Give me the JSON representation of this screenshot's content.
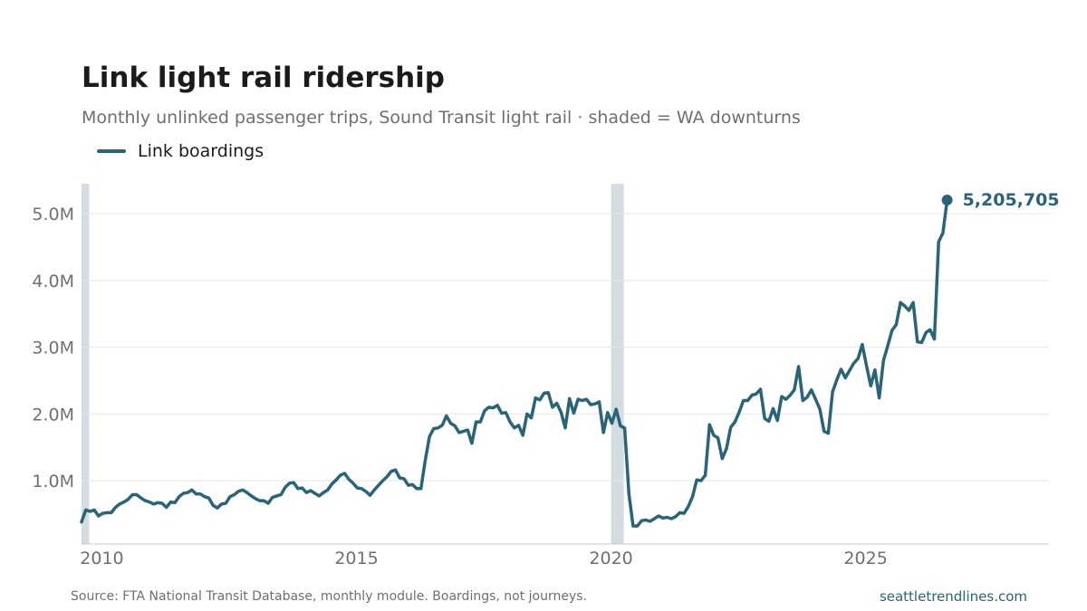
{
  "title": "Link light rail ridership",
  "subtitle": "Monthly unlinked passenger trips, Sound Transit light rail · shaded = WA downturns",
  "legend": {
    "label": "Link boardings"
  },
  "colors": {
    "line": "#2a6577",
    "shade": "#d3dde1",
    "grid": "#e6e6e6",
    "axis": "#c8c8c8",
    "tick": "#6f6f6f"
  },
  "footer": {
    "source": "Source: FTA National Transit Database, monthly module. Boardings, not journeys.",
    "brand": "seattletrendlines.com"
  },
  "chart_data": {
    "type": "line",
    "title": "Link light rail ridership",
    "subtitle": "Monthly unlinked passenger trips, Sound Transit light rail · shaded = WA downturns",
    "xlabel": "",
    "ylabel": "",
    "xlim": [
      2009.6,
      2028.6
    ],
    "ylim": [
      50000,
      5450000
    ],
    "x_ticks": [
      2010,
      2015,
      2020,
      2025
    ],
    "x_tick_labels": [
      "2010",
      "2015",
      "2020",
      "2025"
    ],
    "y_ticks": [
      1000000,
      2000000,
      3000000,
      4000000,
      5000000
    ],
    "y_tick_labels": [
      "1.0M",
      "2.0M",
      "3.0M",
      "4.0M",
      "5.0M"
    ],
    "grid": "horizontal",
    "legend_position": "top-left",
    "shaded_periods": [
      [
        2009.6,
        2009.75
      ],
      [
        2020.0,
        2020.25
      ]
    ],
    "end_label": "5,205,705",
    "series": [
      {
        "name": "Link boardings",
        "start_year": 2009.6,
        "step_years": 0.0833333,
        "values": [
          380000,
          560000,
          540000,
          560000,
          470000,
          510000,
          520000,
          520000,
          600000,
          650000,
          680000,
          720000,
          790000,
          790000,
          740000,
          700000,
          680000,
          650000,
          670000,
          660000,
          600000,
          680000,
          670000,
          760000,
          810000,
          820000,
          860000,
          800000,
          800000,
          760000,
          740000,
          630000,
          590000,
          650000,
          660000,
          760000,
          790000,
          840000,
          860000,
          820000,
          770000,
          730000,
          700000,
          700000,
          660000,
          750000,
          770000,
          790000,
          900000,
          960000,
          970000,
          880000,
          890000,
          820000,
          850000,
          810000,
          770000,
          820000,
          860000,
          950000,
          1010000,
          1080000,
          1110000,
          1020000,
          960000,
          890000,
          880000,
          840000,
          780000,
          860000,
          930000,
          1000000,
          1060000,
          1140000,
          1160000,
          1040000,
          1030000,
          930000,
          940000,
          880000,
          880000,
          1300000,
          1660000,
          1780000,
          1790000,
          1830000,
          1970000,
          1860000,
          1820000,
          1720000,
          1740000,
          1760000,
          1560000,
          1880000,
          1880000,
          2050000,
          2100000,
          2090000,
          2130000,
          2010000,
          2020000,
          1880000,
          1790000,
          1830000,
          1680000,
          2000000,
          1940000,
          2240000,
          2210000,
          2310000,
          2320000,
          2100000,
          2160000,
          2030000,
          1790000,
          2230000,
          2010000,
          2220000,
          2200000,
          2220000,
          2140000,
          2150000,
          2180000,
          1720000,
          2020000,
          1860000,
          2070000,
          1820000,
          1790000,
          800000,
          320000,
          320000,
          400000,
          410000,
          390000,
          430000,
          470000,
          440000,
          450000,
          430000,
          460000,
          520000,
          510000,
          610000,
          760000,
          1010000,
          1000000,
          1080000,
          1840000,
          1680000,
          1640000,
          1330000,
          1480000,
          1800000,
          1880000,
          2030000,
          2200000,
          2200000,
          2280000,
          2300000,
          2370000,
          1930000,
          1890000,
          2080000,
          1900000,
          2260000,
          2220000,
          2280000,
          2360000,
          2710000,
          2200000,
          2250000,
          2360000,
          2220000,
          2070000,
          1740000,
          1710000,
          2330000,
          2510000,
          2670000,
          2540000,
          2650000,
          2760000,
          2830000,
          3040000,
          2720000,
          2420000,
          2660000,
          2240000,
          2800000,
          3020000,
          3250000,
          3340000,
          3670000,
          3620000,
          3550000,
          3670000,
          3080000,
          3070000,
          3220000,
          3260000,
          3120000,
          4580000,
          4710000,
          5205705
        ]
      }
    ]
  }
}
